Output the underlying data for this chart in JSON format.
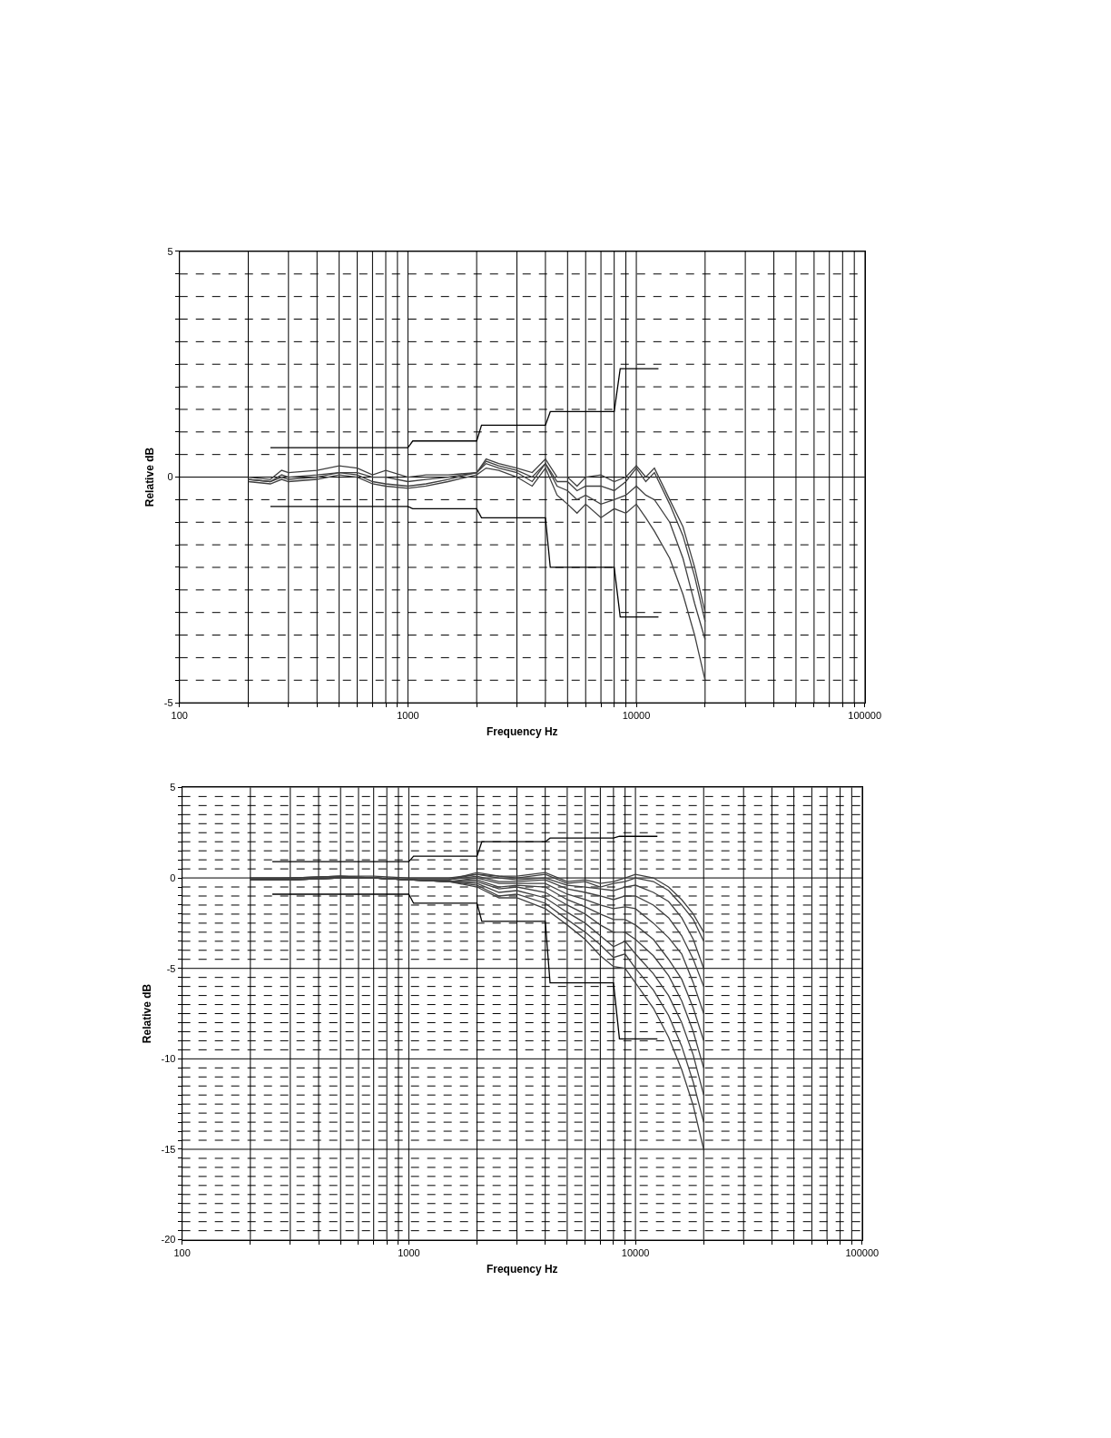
{
  "chart_data": [
    {
      "type": "line",
      "xlabel": "Frequency Hz",
      "ylabel": "Relative dB",
      "log": "x",
      "grid": true,
      "xlim": [
        100,
        100000
      ],
      "ylim": [
        -5,
        5
      ],
      "xticks": [
        100,
        {
          "value": 200,
          "label": null
        },
        {
          "value": 300,
          "label": null
        },
        {
          "value": 400,
          "label": null
        },
        {
          "value": 500,
          "label": null
        },
        {
          "value": 600,
          "label": null
        },
        {
          "value": 700,
          "label": null
        },
        {
          "value": 800,
          "label": null
        },
        {
          "value": 900,
          "label": null
        },
        1000,
        {
          "value": 2000,
          "label": null
        },
        {
          "value": 3000,
          "label": null
        },
        {
          "value": 4000,
          "label": null
        },
        {
          "value": 5000,
          "label": null
        },
        {
          "value": 6000,
          "label": null
        },
        {
          "value": 7000,
          "label": null
        },
        {
          "value": 8000,
          "label": null
        },
        {
          "value": 9000,
          "label": null
        },
        10000,
        {
          "value": 20000,
          "label": null
        },
        {
          "value": 30000,
          "label": null
        },
        {
          "value": 40000,
          "label": null
        },
        {
          "value": 50000,
          "label": null
        },
        {
          "value": 60000,
          "label": null
        },
        {
          "value": 70000,
          "label": null
        },
        {
          "value": 80000,
          "label": null
        },
        {
          "value": 90000,
          "label": null
        },
        100000
      ],
      "yticks": [
        -5,
        {
          "value": -4.5,
          "label": null
        },
        {
          "value": -4,
          "label": null
        },
        {
          "value": -3.5,
          "label": null
        },
        {
          "value": -3,
          "label": null
        },
        {
          "value": -2.5,
          "label": null
        },
        {
          "value": -2,
          "label": null
        },
        {
          "value": -1.5,
          "label": null
        },
        {
          "value": -1,
          "label": null
        },
        {
          "value": -0.5,
          "label": null
        },
        0,
        {
          "value": 0.5,
          "label": null
        },
        {
          "value": 1,
          "label": null
        },
        {
          "value": 1.5,
          "label": null
        },
        {
          "value": 2,
          "label": null
        },
        {
          "value": 2.5,
          "label": null
        },
        {
          "value": 3,
          "label": null
        },
        {
          "value": 3.5,
          "label": null
        },
        {
          "value": 4,
          "label": null
        },
        {
          "value": 4.5,
          "label": null
        },
        5
      ],
      "x": [
        200,
        250,
        280,
        300,
        400,
        500,
        600,
        700,
        800,
        1000,
        1200,
        1500,
        2000,
        2200,
        2500,
        3000,
        3500,
        4000,
        4500,
        5000,
        5500,
        6000,
        7000,
        8000,
        9000,
        10000,
        11000,
        12000,
        14000,
        16000,
        18000,
        20000
      ],
      "series": [
        {
          "color": "#000000",
          "x": [
            250,
            1000,
            1050,
            2000,
            2100,
            4000,
            4200,
            8000,
            8500,
            12500
          ],
          "values": [
            0.65,
            0.65,
            0.8,
            0.8,
            1.15,
            1.15,
            1.45,
            1.45,
            2.4,
            2.4
          ]
        },
        {
          "color": "#000000",
          "x": [
            250,
            1000,
            1050,
            2000,
            2100,
            4000,
            4200,
            8000,
            8500,
            12500
          ],
          "values": [
            -0.65,
            -0.65,
            -0.7,
            -0.7,
            -0.9,
            -0.9,
            -2.0,
            -2.0,
            -3.1,
            -3.1
          ]
        },
        {
          "color": "#404040",
          "values": [
            0,
            -0.05,
            0.15,
            0.1,
            0.15,
            0.25,
            0.2,
            0.05,
            0.15,
            0,
            0.05,
            0.05,
            0.1,
            0.4,
            0.3,
            0.2,
            0.1,
            0.4,
            0,
            0,
            -0.2,
            0,
            0.05,
            -0.1,
            0,
            0.25,
            0,
            0.2,
            -0.5,
            -1.1,
            -2.0,
            -3.0
          ]
        },
        {
          "color": "#404040",
          "values": [
            -0.05,
            -0.1,
            0.05,
            0,
            0.05,
            0.1,
            0.1,
            0,
            0,
            -0.1,
            -0.05,
            0,
            0.1,
            0.35,
            0.25,
            0.15,
            0,
            0.3,
            -0.1,
            -0.1,
            -0.3,
            -0.2,
            -0.2,
            -0.3,
            -0.1,
            0.2,
            -0.1,
            0.1,
            -0.6,
            -1.3,
            -2.2,
            -3.2
          ]
        },
        {
          "color": "#404040",
          "values": [
            -0.05,
            -0.1,
            0,
            -0.05,
            0,
            0.1,
            0.05,
            -0.1,
            -0.15,
            -0.2,
            -0.15,
            -0.05,
            0.1,
            0.3,
            0.2,
            0.1,
            -0.1,
            0.3,
            -0.2,
            -0.3,
            -0.5,
            -0.4,
            -0.6,
            -0.5,
            -0.4,
            -0.2,
            -0.4,
            -0.5,
            -1.0,
            -1.8,
            -2.8,
            -3.6
          ]
        },
        {
          "color": "#404040",
          "values": [
            -0.1,
            -0.15,
            -0.05,
            -0.1,
            -0.05,
            0.05,
            0,
            -0.15,
            -0.2,
            -0.25,
            -0.2,
            -0.1,
            0.05,
            0.2,
            0.15,
            0,
            -0.2,
            0.2,
            -0.4,
            -0.6,
            -0.8,
            -0.6,
            -0.9,
            -0.7,
            -0.8,
            -0.6,
            -0.9,
            -1.2,
            -1.8,
            -2.6,
            -3.5,
            -4.5
          ]
        }
      ]
    },
    {
      "type": "line",
      "xlabel": "Frequency Hz",
      "ylabel": "Relative dB",
      "log": "x",
      "grid": true,
      "xlim": [
        100,
        100000
      ],
      "ylim": [
        -20,
        5
      ],
      "xticks": [
        100,
        {
          "value": 200,
          "label": null
        },
        {
          "value": 300,
          "label": null
        },
        {
          "value": 400,
          "label": null
        },
        {
          "value": 500,
          "label": null
        },
        {
          "value": 600,
          "label": null
        },
        {
          "value": 700,
          "label": null
        },
        {
          "value": 800,
          "label": null
        },
        {
          "value": 900,
          "label": null
        },
        1000,
        {
          "value": 2000,
          "label": null
        },
        {
          "value": 3000,
          "label": null
        },
        {
          "value": 4000,
          "label": null
        },
        {
          "value": 5000,
          "label": null
        },
        {
          "value": 6000,
          "label": null
        },
        {
          "value": 7000,
          "label": null
        },
        {
          "value": 8000,
          "label": null
        },
        {
          "value": 9000,
          "label": null
        },
        10000,
        {
          "value": 20000,
          "label": null
        },
        {
          "value": 30000,
          "label": null
        },
        {
          "value": 40000,
          "label": null
        },
        {
          "value": 50000,
          "label": null
        },
        {
          "value": 60000,
          "label": null
        },
        {
          "value": 70000,
          "label": null
        },
        {
          "value": 80000,
          "label": null
        },
        {
          "value": 90000,
          "label": null
        },
        100000
      ],
      "yticks": [
        -20,
        {
          "value": -19.5,
          "label": null
        },
        {
          "value": -19,
          "label": null
        },
        {
          "value": -18.5,
          "label": null
        },
        {
          "value": -18,
          "label": null
        },
        {
          "value": -17.5,
          "label": null
        },
        {
          "value": -17,
          "label": null
        },
        {
          "value": -16.5,
          "label": null
        },
        {
          "value": -16,
          "label": null
        },
        {
          "value": -15.5,
          "label": null
        },
        -15,
        {
          "value": -14.5,
          "label": null
        },
        {
          "value": -14,
          "label": null
        },
        {
          "value": -13.5,
          "label": null
        },
        {
          "value": -13,
          "label": null
        },
        {
          "value": -12.5,
          "label": null
        },
        {
          "value": -12,
          "label": null
        },
        {
          "value": -11.5,
          "label": null
        },
        {
          "value": -11,
          "label": null
        },
        {
          "value": -10.5,
          "label": null
        },
        -10,
        {
          "value": -9.5,
          "label": null
        },
        {
          "value": -9,
          "label": null
        },
        {
          "value": -8.5,
          "label": null
        },
        {
          "value": -8,
          "label": null
        },
        {
          "value": -7.5,
          "label": null
        },
        {
          "value": -7,
          "label": null
        },
        {
          "value": -6.5,
          "label": null
        },
        {
          "value": -6,
          "label": null
        },
        {
          "value": -5.5,
          "label": null
        },
        -5,
        {
          "value": -4.5,
          "label": null
        },
        {
          "value": -4,
          "label": null
        },
        {
          "value": -3.5,
          "label": null
        },
        {
          "value": -3,
          "label": null
        },
        {
          "value": -2.5,
          "label": null
        },
        {
          "value": -2,
          "label": null
        },
        {
          "value": -1.5,
          "label": null
        },
        {
          "value": -1,
          "label": null
        },
        {
          "value": -0.5,
          "label": null
        },
        0,
        {
          "value": 0.5,
          "label": null
        },
        {
          "value": 1,
          "label": null
        },
        {
          "value": 1.5,
          "label": null
        },
        {
          "value": 2,
          "label": null
        },
        {
          "value": 2.5,
          "label": null
        },
        {
          "value": 3,
          "label": null
        },
        {
          "value": 3.5,
          "label": null
        },
        {
          "value": 4,
          "label": null
        },
        {
          "value": 4.5,
          "label": null
        },
        5
      ],
      "x": [
        200,
        300,
        500,
        700,
        1000,
        1500,
        2000,
        2500,
        3000,
        4000,
        5000,
        6000,
        7000,
        8000,
        9000,
        10000,
        12000,
        14000,
        16000,
        18000,
        20000
      ],
      "series": [
        {
          "color": "#000000",
          "x": [
            250,
            1000,
            1050,
            2000,
            2100,
            4000,
            4200,
            8000,
            8500,
            12500
          ],
          "values": [
            0.9,
            0.9,
            1.2,
            1.2,
            2.0,
            2.0,
            2.2,
            2.2,
            2.3,
            2.3
          ]
        },
        {
          "color": "#000000",
          "x": [
            250,
            1000,
            1050,
            2000,
            2100,
            4000,
            4200,
            8000,
            8500,
            12500
          ],
          "values": [
            -0.9,
            -0.9,
            -1.4,
            -1.4,
            -2.4,
            -2.4,
            -5.8,
            -5.8,
            -8.9,
            -8.9
          ]
        },
        {
          "color": "#404040",
          "values": [
            0,
            0,
            0.1,
            0.1,
            0,
            0,
            0.2,
            0.1,
            0.1,
            0.3,
            -0.2,
            -0.1,
            -0.3,
            -0.2,
            0,
            0.2,
            0,
            -0.5,
            -1.2,
            -2,
            -3
          ]
        },
        {
          "color": "#404040",
          "values": [
            0,
            0,
            0.1,
            0,
            -0.1,
            -0.1,
            0.3,
            0.1,
            0,
            0.2,
            -0.3,
            -0.2,
            -0.5,
            -0.3,
            -0.2,
            0,
            -0.2,
            -0.7,
            -1.5,
            -2.3,
            -3.5
          ]
        },
        {
          "color": "#404040",
          "values": [
            -0.1,
            0,
            0.1,
            0,
            -0.1,
            -0.1,
            0.2,
            0,
            -0.1,
            0,
            -0.4,
            -0.5,
            -0.6,
            -0.7,
            -0.5,
            -0.4,
            -0.8,
            -1.3,
            -2.2,
            -3.4,
            -5
          ]
        },
        {
          "color": "#404040",
          "values": [
            -0.1,
            -0.1,
            0.05,
            0,
            -0.1,
            -0.1,
            0.1,
            -0.2,
            -0.2,
            -0.1,
            -0.6,
            -0.8,
            -1.0,
            -1.2,
            -1.0,
            -1.0,
            -1.5,
            -2.2,
            -3.2,
            -4.5,
            -6
          ]
        },
        {
          "color": "#404040",
          "values": [
            -0.1,
            -0.1,
            0,
            0,
            -0.1,
            -0.2,
            0,
            -0.3,
            -0.3,
            -0.3,
            -0.9,
            -1.2,
            -1.5,
            -1.7,
            -1.6,
            -1.7,
            -2.5,
            -3.3,
            -4.2,
            -5.8,
            -7.5
          ]
        },
        {
          "color": "#404040",
          "values": [
            -0.1,
            -0.1,
            0,
            0,
            -0.1,
            -0.2,
            -0.1,
            -0.5,
            -0.4,
            -0.5,
            -1.2,
            -1.6,
            -2.0,
            -2.3,
            -2.3,
            -2.6,
            -3.4,
            -4.5,
            -5.6,
            -7.2,
            -9
          ]
        },
        {
          "color": "#404040",
          "values": [
            -0.1,
            -0.1,
            0,
            0,
            -0.1,
            -0.2,
            -0.2,
            -0.6,
            -0.5,
            -0.8,
            -1.5,
            -2.0,
            -2.6,
            -3.0,
            -3.0,
            -3.4,
            -4.3,
            -5.4,
            -6.8,
            -8.5,
            -10.5
          ]
        },
        {
          "color": "#404040",
          "values": [
            -0.1,
            -0.1,
            0,
            0,
            -0.1,
            -0.2,
            -0.3,
            -0.8,
            -0.7,
            -1.1,
            -1.9,
            -2.5,
            -3.2,
            -3.8,
            -3.5,
            -4.2,
            -5.3,
            -6.5,
            -8.0,
            -9.8,
            -12
          ]
        },
        {
          "color": "#404040",
          "values": [
            -0.1,
            -0.1,
            0,
            0,
            -0.1,
            -0.2,
            -0.4,
            -1.0,
            -0.9,
            -1.4,
            -2.3,
            -3.0,
            -3.7,
            -4.4,
            -4.2,
            -5.0,
            -6.2,
            -7.6,
            -9.3,
            -11.3,
            -13.5
          ]
        },
        {
          "color": "#404040",
          "values": [
            -0.1,
            -0.1,
            0,
            0,
            -0.1,
            -0.2,
            -0.5,
            -1.1,
            -1.1,
            -1.7,
            -2.6,
            -3.4,
            -4.3,
            -4.9,
            -5.0,
            -5.8,
            -7.2,
            -8.8,
            -10.6,
            -12.6,
            -15
          ]
        }
      ]
    }
  ]
}
